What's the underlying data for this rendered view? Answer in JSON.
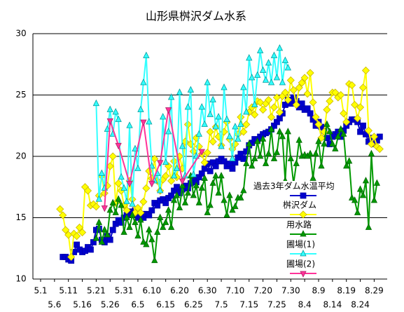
{
  "chart_data": {
    "type": "line",
    "title": "山形県桝沢ダム水系",
    "categories": [
      "5.1",
      null,
      null,
      null,
      null,
      "5.6",
      null,
      null,
      null,
      null,
      "5.11",
      null,
      null,
      null,
      null,
      "5.16",
      null,
      null,
      null,
      null,
      "5.21",
      null,
      null,
      null,
      null,
      "5.26",
      null,
      null,
      null,
      null,
      "5.31",
      null,
      null,
      null,
      null,
      "6.5",
      null,
      null,
      null,
      null,
      "6.10",
      null,
      null,
      null,
      null,
      "6.15",
      null,
      null,
      null,
      null,
      "6.20",
      null,
      null,
      null,
      null,
      "6.25",
      null,
      null,
      null,
      null,
      "6.30",
      null,
      null,
      null,
      null,
      "7.5",
      null,
      null,
      null,
      null,
      "7.10",
      null,
      null,
      null,
      null,
      "7.15",
      null,
      null,
      null,
      null,
      "7.20",
      null,
      null,
      null,
      null,
      "7.25",
      null,
      null,
      null,
      null,
      "7.30",
      null,
      null,
      null,
      null,
      "8.4",
      null,
      null,
      null,
      null,
      "8.9",
      null,
      null,
      null,
      null,
      "8.14",
      null,
      null,
      null,
      null,
      "8.19",
      null,
      null,
      null,
      null,
      "8.24",
      null,
      null,
      null,
      null,
      "8.29",
      null,
      null
    ],
    "ylim": [
      10,
      30
    ],
    "yticks": [
      10,
      15,
      20,
      25,
      30
    ],
    "grid": true,
    "series": [
      {
        "name": "過去3年ダム水温平均",
        "color": "#0000cc",
        "marker": "square",
        "values": [
          null,
          null,
          null,
          null,
          null,
          null,
          null,
          null,
          11.8,
          11.8,
          11.6,
          11.5,
          12.2,
          12.8,
          12.4,
          12.2,
          12.3,
          12.6,
          12.4,
          13.0,
          14.0,
          14.1,
          13.2,
          13.0,
          13.5,
          13.2,
          14.0,
          14.5,
          14.8,
          14.6,
          15.0,
          15.2,
          15.5,
          15.4,
          15.6,
          15.0,
          15.1,
          15.0,
          15.3,
          15.2,
          15.6,
          16.2,
          16.0,
          16.4,
          16.5,
          16.2,
          16.6,
          16.8,
          17.2,
          17.5,
          17.0,
          17.3,
          17.6,
          17.4,
          17.8,
          18.1,
          17.9,
          18.3,
          18.6,
          19.0,
          19.4,
          18.8,
          19.5,
          19.2,
          19.6,
          19.8,
          19.6,
          19.2,
          19.4,
          19.0,
          19.5,
          19.9,
          20.2,
          19.8,
          20.4,
          20.9,
          21.1,
          21.4,
          21.3,
          21.6,
          21.8,
          21.9,
          22.0,
          22.2,
          22.5,
          22.8,
          23.1,
          23.5,
          24.2,
          24.6,
          24.3,
          24.8,
          24.5,
          24.0,
          24.3,
          23.8,
          23.9,
          23.5,
          23.0,
          22.5,
          22.8,
          22.4,
          22.1,
          21.5,
          21.0,
          21.6,
          21.8,
          22.0,
          21.6,
          22.1,
          22.5,
          22.8,
          23.0,
          23.0,
          22.8,
          22.0,
          22.5,
          21.8,
          21.2,
          21.5,
          21.0,
          21.3,
          21.6
        ]
      },
      {
        "name": "桝沢ダム",
        "color": "#ffff00",
        "marker": "diamond",
        "values": [
          null,
          null,
          null,
          null,
          null,
          null,
          null,
          15.7,
          15.2,
          14.0,
          13.6,
          11.8,
          13.7,
          13.5,
          14.2,
          13.8,
          17.5,
          17.2,
          16.0,
          16.1,
          15.9,
          16.8,
          18.4,
          17.0,
          17.6,
          19.2,
          20.0,
          16.2,
          17.8,
          17.2,
          16.0,
          15.6,
          18.0,
          16.5,
          15.4,
          15.8,
          15.4,
          16.3,
          17.4,
          18.8,
          18.2,
          19.8,
          18.0,
          17.2,
          18.1,
          18.4,
          19.2,
          18.0,
          19.6,
          18.3,
          20.0,
          19.0,
          21.2,
          22.6,
          21.0,
          20.4,
          21.5,
          20.8,
          20.2,
          19.5,
          20.3,
          22.0,
          21.2,
          22.4,
          21.6,
          20.9,
          22.0,
          22.8,
          21.4,
          20.6,
          21.0,
          21.8,
          23.2,
          22.0,
          22.6,
          23.6,
          24.0,
          23.4,
          24.5,
          24.4,
          23.8,
          24.3,
          24.6,
          23.2,
          24.0,
          24.8,
          23.6,
          24.9,
          25.2,
          24.6,
          26.2,
          25.4,
          24.2,
          25.6,
          26.0,
          26.4,
          25.1,
          26.8,
          24.4,
          23.2,
          22.6,
          21.5,
          22.0,
          23.8,
          24.5,
          25.2,
          25.2,
          24.8,
          25.0,
          23.5,
          22.8,
          25.9,
          25.8,
          24.2,
          23.1,
          24.0,
          25.6,
          27.0,
          22.1,
          21.0,
          21.6,
          20.8,
          20.6
        ]
      },
      {
        "name": "用水路",
        "color": "#009900",
        "marker": "triangle",
        "values": [
          null,
          null,
          null,
          null,
          null,
          null,
          null,
          null,
          null,
          null,
          null,
          null,
          null,
          null,
          null,
          null,
          null,
          null,
          null,
          null,
          13.3,
          14.6,
          13.0,
          14.0,
          13.6,
          15.6,
          16.2,
          15.4,
          16.5,
          16.0,
          13.8,
          15.0,
          14.2,
          15.2,
          14.6,
          13.5,
          14.8,
          13.0,
          12.8,
          14.0,
          13.2,
          11.5,
          13.8,
          15.0,
          14.2,
          14.6,
          15.6,
          14.2,
          16.4,
          16.8,
          15.8,
          17.6,
          16.2,
          17.0,
          18.4,
          16.8,
          17.6,
          16.2,
          17.4,
          18.2,
          15.4,
          16.0,
          17.8,
          18.4,
          17.0,
          18.4,
          16.4,
          15.2,
          16.8,
          15.6,
          15.9,
          16.6,
          16.6,
          17.2,
          19.4,
          21.0,
          19.2,
          19.8,
          21.2,
          20.0,
          21.4,
          19.4,
          20.2,
          22.2,
          19.8,
          20.3,
          22.0,
          21.6,
          18.0,
          22.0,
          19.8,
          17.8,
          19.4,
          21.3,
          20.0,
          20.1,
          20.0,
          20.2,
          18.2,
          20.2,
          21.2,
          19.2,
          21.0,
          22.6,
          22.0,
          21.0,
          20.6,
          21.6,
          22.2,
          21.8,
          19.2,
          19.6,
          16.6,
          16.4,
          15.4,
          17.3,
          16.8,
          18.0,
          14.2,
          20.2,
          16.4,
          17.8,
          null
        ]
      },
      {
        "name": "圃場(1)",
        "color": "#33ffff",
        "marker": "triangle",
        "values": [
          null,
          null,
          null,
          null,
          null,
          null,
          null,
          null,
          null,
          null,
          null,
          null,
          null,
          null,
          null,
          null,
          null,
          null,
          null,
          null,
          24.3,
          16.5,
          18.6,
          17.4,
          22.2,
          23.8,
          21.8,
          23.6,
          23.0,
          18.3,
          17.4,
          16.3,
          22.5,
          16.1,
          20.6,
          19.0,
          23.8,
          26.0,
          28.2,
          22.8,
          19.2,
          18.0,
          18.6,
          17.2,
          23.2,
          19.5,
          22.0,
          24.8,
          18.4,
          19.0,
          25.2,
          20.8,
          18.4,
          24.0,
          25.4,
          18.5,
          20.0,
          21.8,
          24.0,
          22.6,
          26.0,
          23.4,
          24.6,
          22.4,
          23.2,
          20.8,
          25.6,
          23.0,
          21.6,
          19.8,
          22.4,
          21.4,
          22.6,
          25.6,
          23.6,
          28.0,
          26.4,
          24.2,
          26.6,
          28.6,
          27.0,
          26.2,
          27.6,
          26.0,
          28.2,
          26.4,
          28.8,
          26.0,
          27.8,
          27.2,
          null,
          null,
          null,
          null,
          null,
          null,
          null,
          null,
          null,
          null,
          null,
          null,
          null,
          null,
          null,
          null,
          null,
          null,
          null,
          null,
          null,
          null,
          null,
          null,
          null,
          null,
          null,
          null,
          null,
          null,
          null,
          null,
          null
        ]
      },
      {
        "name": "圃場(2)",
        "color": "#ff3399",
        "marker": "triangle-down",
        "connect_gaps": true,
        "values": [
          null,
          null,
          null,
          null,
          null,
          null,
          null,
          null,
          null,
          null,
          null,
          null,
          null,
          null,
          null,
          null,
          null,
          null,
          null,
          null,
          null,
          null,
          null,
          15.8,
          null,
          22.9,
          null,
          null,
          20.9,
          null,
          null,
          null,
          17.8,
          null,
          null,
          null,
          null,
          22.8,
          null,
          null,
          17.8,
          null,
          null,
          19.5,
          null,
          null,
          23.8,
          null,
          null,
          null,
          null,
          18.0,
          null,
          null,
          null,
          null,
          null,
          null,
          20.4,
          null,
          null,
          null,
          null,
          null,
          null,
          null,
          null,
          null,
          null,
          null,
          null,
          null,
          null,
          null,
          null,
          null,
          null,
          null,
          null,
          null,
          null,
          null,
          null,
          null,
          null,
          null,
          null,
          null,
          null,
          null,
          null,
          null,
          null,
          null,
          null,
          null,
          null,
          null,
          null,
          null,
          null,
          null,
          null,
          null,
          null,
          null,
          null,
          null,
          null,
          null,
          null,
          null,
          null,
          null,
          null,
          null,
          null,
          null,
          null,
          null,
          null,
          null,
          null
        ]
      }
    ]
  }
}
